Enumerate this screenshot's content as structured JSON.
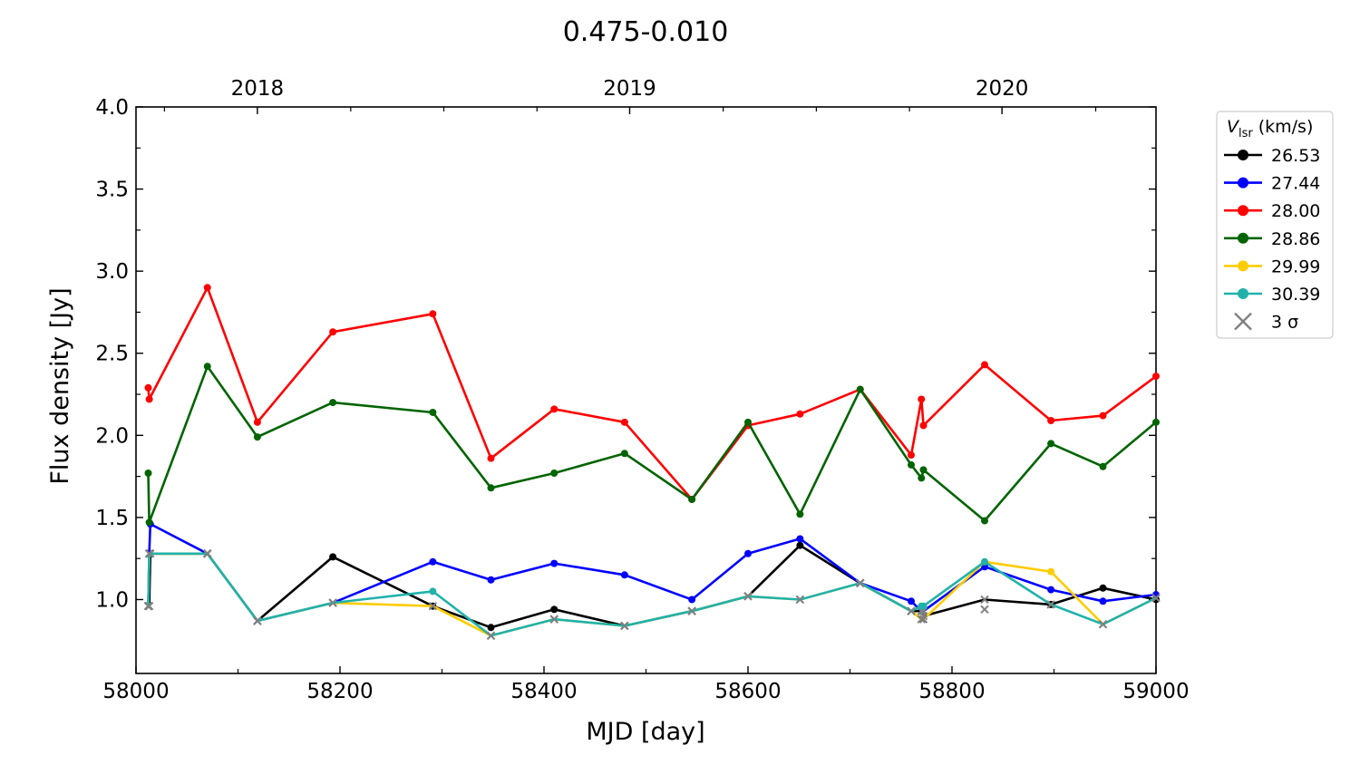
{
  "chart_data": {
    "type": "line",
    "title": "0.475-0.010",
    "xlabel": "MJD [day]",
    "ylabel": "Flux density [Jy]",
    "xlim": [
      58000,
      59000
    ],
    "ylim": [
      0.55,
      4.0
    ],
    "x_ticks": [
      "58000",
      "58200",
      "58400",
      "58600",
      "58800",
      "59000"
    ],
    "y_ticks": [
      "1.0",
      "1.5",
      "2.0",
      "2.5",
      "3.0",
      "3.5",
      "4.0"
    ],
    "top_axis": {
      "ticks": [
        "2018",
        "2019",
        "2020"
      ],
      "mjd": [
        58119,
        58484,
        58849
      ]
    },
    "legend": {
      "title_symbol": "V",
      "title_subscript": "lsr",
      "title_unit": "(km/s)",
      "position": "outside-right",
      "sigma_label": "3 σ"
    },
    "sigma_color": "#808080",
    "series": [
      {
        "name": "26.53",
        "color": "#000000",
        "x": [
          58012,
          58013,
          58014,
          58070,
          58119,
          58193,
          58291,
          58348,
          58410,
          58479,
          58545,
          58600,
          58651,
          58710,
          58760,
          58770,
          58772,
          58832,
          58897,
          58948,
          59000
        ],
        "y": [
          0.96,
          0.96,
          1.28,
          1.28,
          0.87,
          1.26,
          0.96,
          0.83,
          0.94,
          0.84,
          0.93,
          1.02,
          1.33,
          1.1,
          0.93,
          0.93,
          0.9,
          1.0,
          0.97,
          1.07,
          1.0
        ],
        "sigma": [
          true,
          true,
          true,
          true,
          true,
          false,
          false,
          false,
          false,
          true,
          true,
          true,
          false,
          true,
          true,
          true,
          true,
          true,
          false,
          false,
          false
        ]
      },
      {
        "name": "27.44",
        "color": "#0000ff",
        "x": [
          58012,
          58013,
          58014,
          58070,
          58119,
          58193,
          58291,
          58348,
          58410,
          58479,
          58545,
          58600,
          58651,
          58710,
          58760,
          58770,
          58772,
          58832,
          58897,
          58948,
          59000
        ],
        "y": [
          0.96,
          1.28,
          1.46,
          1.28,
          0.87,
          0.98,
          1.23,
          1.12,
          1.22,
          1.15,
          1.0,
          1.28,
          1.37,
          1.1,
          0.99,
          0.93,
          0.93,
          1.2,
          1.06,
          0.99,
          1.03
        ],
        "sigma": [
          true,
          true,
          false,
          true,
          true,
          true,
          false,
          false,
          false,
          false,
          false,
          false,
          false,
          true,
          false,
          true,
          true,
          false,
          false,
          false,
          false
        ]
      },
      {
        "name": "28.00",
        "color": "#ff0000",
        "x": [
          58012,
          58013,
          58070,
          58119,
          58193,
          58291,
          58348,
          58410,
          58479,
          58545,
          58600,
          58651,
          58710,
          58760,
          58770,
          58772,
          58832,
          58897,
          58948,
          59000
        ],
        "y": [
          2.29,
          2.22,
          2.9,
          2.08,
          2.63,
          2.74,
          1.86,
          2.16,
          2.08,
          1.61,
          2.06,
          2.13,
          2.28,
          1.88,
          2.22,
          2.06,
          2.43,
          2.09,
          2.12,
          2.36
        ],
        "sigma": [
          false,
          false,
          false,
          false,
          false,
          false,
          false,
          false,
          false,
          false,
          false,
          false,
          false,
          false,
          false,
          false,
          false,
          false,
          false,
          false
        ]
      },
      {
        "name": "28.86",
        "color": "#006400",
        "x": [
          58012,
          58013,
          58070,
          58119,
          58193,
          58291,
          58348,
          58410,
          58479,
          58545,
          58600,
          58651,
          58710,
          58760,
          58770,
          58772,
          58832,
          58897,
          58948,
          59000
        ],
        "y": [
          1.77,
          1.47,
          2.42,
          1.99,
          2.2,
          2.14,
          1.68,
          1.77,
          1.89,
          1.61,
          2.08,
          1.52,
          2.28,
          1.82,
          1.74,
          1.79,
          1.48,
          1.95,
          1.81,
          2.08
        ],
        "sigma": [
          false,
          false,
          false,
          false,
          false,
          false,
          false,
          false,
          false,
          false,
          false,
          false,
          false,
          false,
          false,
          false,
          false,
          false,
          false,
          false
        ]
      },
      {
        "name": "29.99",
        "color": "#ffcc00",
        "x": [
          58012,
          58013,
          58070,
          58119,
          58193,
          58291,
          58348,
          58410,
          58479,
          58545,
          58600,
          58651,
          58710,
          58760,
          58770,
          58772,
          58832,
          58897,
          58948,
          59000
        ],
        "y": [
          0.96,
          1.28,
          1.28,
          0.87,
          0.98,
          0.96,
          0.78,
          0.88,
          0.84,
          0.93,
          1.02,
          1.0,
          1.1,
          0.93,
          0.88,
          0.88,
          1.23,
          1.17,
          0.85,
          1.01
        ],
        "sigma": [
          true,
          true,
          true,
          true,
          true,
          true,
          true,
          true,
          true,
          true,
          true,
          true,
          true,
          true,
          true,
          true,
          false,
          false,
          true,
          true
        ]
      },
      {
        "name": "30.39",
        "color": "#20b2aa",
        "x": [
          58012,
          58013,
          58070,
          58119,
          58193,
          58291,
          58348,
          58410,
          58479,
          58545,
          58600,
          58651,
          58710,
          58760,
          58770,
          58772,
          58832,
          58897,
          58948,
          59000
        ],
        "y": [
          0.96,
          1.28,
          1.28,
          0.87,
          0.98,
          1.05,
          0.78,
          0.88,
          0.84,
          0.93,
          1.02,
          1.0,
          1.1,
          0.93,
          0.96,
          0.96,
          1.23,
          0.97,
          0.85,
          1.01
        ],
        "sigma": [
          true,
          true,
          true,
          true,
          true,
          false,
          true,
          true,
          true,
          true,
          true,
          true,
          true,
          true,
          false,
          false,
          false,
          true,
          true,
          true
        ]
      }
    ],
    "sigma_only_points": [
      {
        "x": 58832,
        "y": 0.94
      }
    ]
  }
}
